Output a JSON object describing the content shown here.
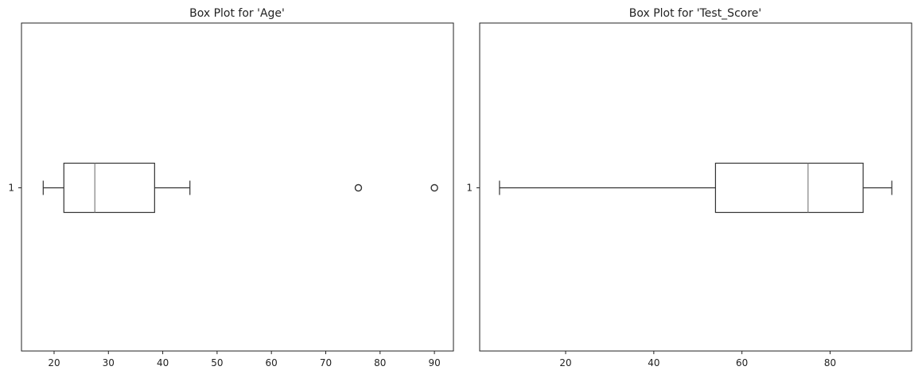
{
  "chart_data": [
    {
      "type": "box",
      "orientation": "horizontal",
      "title": "Box Plot for 'Age'",
      "xlabel": "",
      "ylabel": "",
      "xlim": [
        14,
        93.5
      ],
      "xticks": [
        20,
        30,
        40,
        50,
        60,
        70,
        80,
        90
      ],
      "yticks": [
        "1"
      ],
      "grid": false,
      "box": {
        "whisker_low": 18,
        "q1": 21.8,
        "median": 27.5,
        "q3": 38.5,
        "whisker_high": 45
      },
      "outliers": [
        76,
        90
      ]
    },
    {
      "type": "box",
      "orientation": "horizontal",
      "title": "Box Plot for 'Test_Score'",
      "xlabel": "",
      "ylabel": "",
      "xlim": [
        0.5,
        98.5
      ],
      "xticks": [
        20,
        40,
        60,
        80
      ],
      "yticks": [
        "1"
      ],
      "grid": false,
      "box": {
        "whisker_low": 5,
        "q1": 54,
        "median": 75,
        "q3": 87.5,
        "whisker_high": 94
      },
      "outliers": []
    }
  ],
  "colors": {
    "box": "#333333",
    "median": "#808080",
    "frame": "#222222"
  }
}
